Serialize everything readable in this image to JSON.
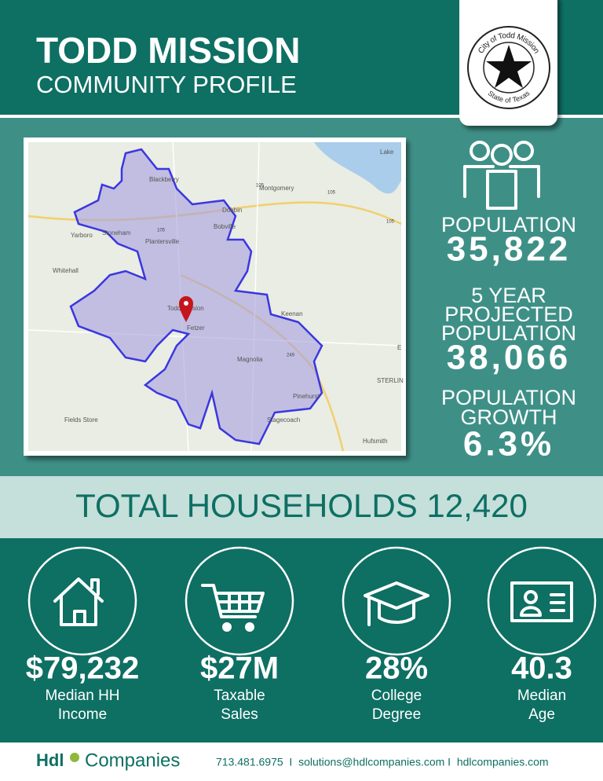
{
  "header": {
    "title": "TODD MISSION",
    "subtitle": "COMMUNITY PROFILE"
  },
  "seal": {
    "top": "City of Todd Mission",
    "bottom": "State of Texas"
  },
  "map": {
    "labels": [
      "Blackberry",
      "Montgomery",
      "Lake",
      "Yarboro",
      "Stoneham",
      "Plantersville",
      "Dobbin",
      "Bobville",
      "Whitehall",
      "Todd Mission",
      "Fetzer",
      "Keenan",
      "Magnolia",
      "Pinehurst",
      "Stagecoach",
      "Fields Store",
      "Hufsmith",
      "STERLIN",
      "E"
    ],
    "roads": [
      "105",
      "105",
      "105",
      "105",
      "249"
    ]
  },
  "stats": [
    {
      "lines": [
        "POPULATION"
      ],
      "value": "35,822"
    },
    {
      "lines": [
        "5 YEAR",
        "PROJECTED",
        "POPULATION"
      ],
      "value": "38,066"
    },
    {
      "lines": [
        "POPULATION",
        "GROWTH"
      ],
      "value": "6.3%"
    }
  ],
  "households": "TOTAL HOUSEHOLDS 12,420",
  "metrics": [
    {
      "value": "$79,232",
      "lines": [
        "Median HH",
        "Income"
      ]
    },
    {
      "value": "$27M",
      "lines": [
        "Taxable",
        "Sales"
      ]
    },
    {
      "value": "28%",
      "lines": [
        "College",
        "Degree"
      ]
    },
    {
      "value": "40.3",
      "lines": [
        "Median",
        "Age"
      ]
    }
  ],
  "footer": {
    "brand": "Hdl",
    "company": "Companies",
    "contact": "713.481.6975  I  solutions@hdlcompanies.com I  hdlcompanies.com"
  }
}
